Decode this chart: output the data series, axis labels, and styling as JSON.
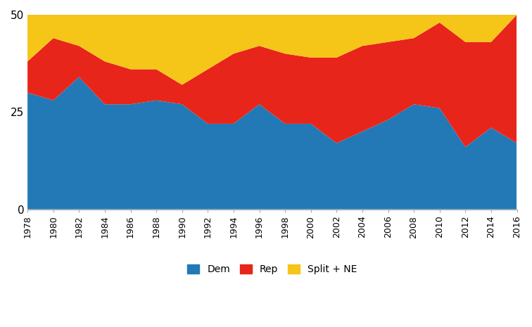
{
  "years": [
    1978,
    1980,
    1982,
    1984,
    1986,
    1988,
    1990,
    1992,
    1994,
    1996,
    1998,
    2000,
    2002,
    2004,
    2006,
    2008,
    2010,
    2012,
    2014,
    2016
  ],
  "dem": [
    30,
    28,
    34,
    27,
    27,
    28,
    27,
    22,
    22,
    27,
    22,
    22,
    17,
    20,
    23,
    27,
    26,
    16,
    21,
    17
  ],
  "rep": [
    8,
    16,
    8,
    11,
    9,
    8,
    5,
    14,
    18,
    15,
    18,
    17,
    22,
    22,
    20,
    17,
    22,
    27,
    22,
    33
  ],
  "split_ne": [
    12,
    6,
    8,
    12,
    14,
    14,
    18,
    14,
    10,
    8,
    10,
    11,
    11,
    8,
    7,
    6,
    2,
    7,
    7,
    0
  ],
  "colors": {
    "dem": "#2279b5",
    "rep": "#e8251a",
    "split_ne": "#f5c518"
  },
  "ylim": [
    0,
    50
  ],
  "yticks": [
    0,
    25,
    50
  ],
  "legend_labels": [
    "Dem",
    "Rep",
    "Split + NE"
  ],
  "background_color": "#ffffff",
  "grid_color": "#d0d0d0"
}
